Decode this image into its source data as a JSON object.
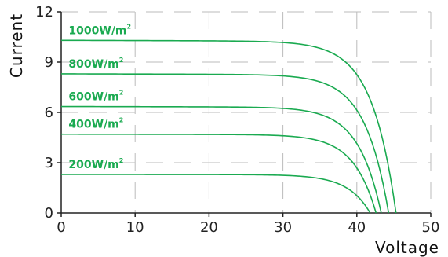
{
  "chart_data": {
    "type": "line",
    "xlabel": "Voltage",
    "ylabel": "Current",
    "xlim": [
      0,
      50
    ],
    "ylim": [
      0,
      12
    ],
    "xticks": [
      0,
      10,
      20,
      30,
      40,
      50
    ],
    "yticks": [
      0,
      3,
      6,
      9,
      12
    ],
    "grid": true,
    "line_color": "#1aaa50",
    "label_color": "#1aaa50",
    "series": [
      {
        "name": "1000W/m",
        "sup": "2",
        "isc": 10.3,
        "knee_v": 32.5,
        "voc": 45.3
      },
      {
        "name": "800W/m",
        "sup": "2",
        "isc": 8.3,
        "knee_v": 32.5,
        "voc": 44.3
      },
      {
        "name": "600W/m",
        "sup": "2",
        "isc": 6.35,
        "knee_v": 32.5,
        "voc": 43.3
      },
      {
        "name": "400W/m",
        "sup": "2",
        "isc": 4.7,
        "knee_v": 32.5,
        "voc": 42.6
      },
      {
        "name": "200W/m",
        "sup": "2",
        "isc": 2.3,
        "knee_v": 32.5,
        "voc": 41.8
      }
    ]
  }
}
